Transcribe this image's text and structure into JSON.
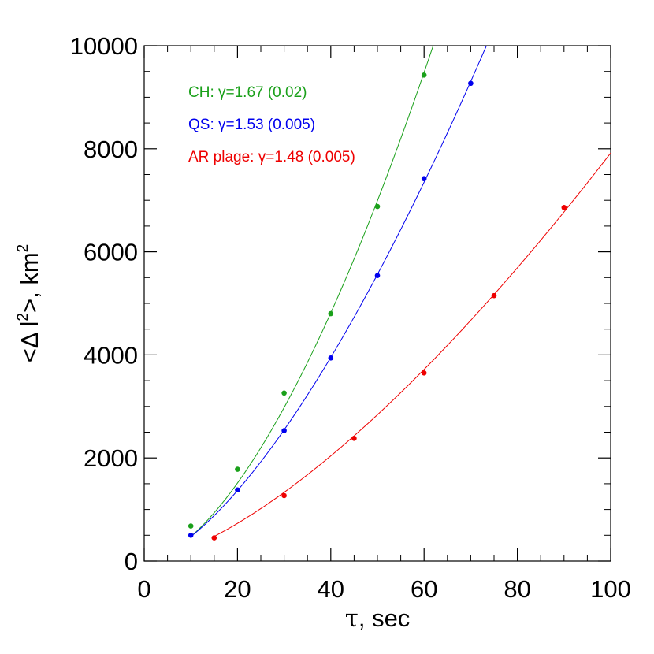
{
  "chart_data": {
    "type": "line",
    "xlabel_symbol": "τ",
    "xlabel_rest": ", sec",
    "ylabel_parts": {
      "open": "<Δ l",
      "exp1": "2",
      "mid": ">, km",
      "exp2": "2"
    },
    "xlim": [
      0,
      100
    ],
    "ylim": [
      0,
      10000
    ],
    "x_ticks": [
      0,
      20,
      40,
      60,
      80,
      100
    ],
    "x_tick_labels": [
      "0",
      "20",
      "40",
      "60",
      "80",
      "100"
    ],
    "x_minor_step": 5,
    "y_ticks": [
      0,
      2000,
      4000,
      6000,
      8000,
      10000
    ],
    "y_tick_labels": [
      "0",
      "2000",
      "4000",
      "6000",
      "8000",
      "10000"
    ],
    "y_minor_step": 500,
    "grid": false,
    "legend_position": "top-left",
    "series": [
      {
        "name": "CH",
        "legend_label": "CH: γ=1.67 (0.02)",
        "color": "#1aa01a",
        "x": [
          10,
          20,
          30,
          40,
          50,
          60
        ],
        "y": [
          680,
          1780,
          3260,
          4800,
          6880,
          9430
        ],
        "fit_gamma": 1.67,
        "fit_range": [
          10,
          63
        ]
      },
      {
        "name": "QS",
        "legend_label": "QS: γ=1.53 (0.005)",
        "color": "#0000ee",
        "x": [
          10,
          20,
          30,
          40,
          50,
          60,
          70
        ],
        "y": [
          500,
          1380,
          2530,
          3940,
          5540,
          7420,
          9270
        ],
        "fit_gamma": 1.53,
        "fit_range": [
          10,
          74
        ]
      },
      {
        "name": "AR plage",
        "legend_label": "AR plage: γ=1.48 (0.005)",
        "color": "#ee0000",
        "x": [
          15,
          30,
          45,
          60,
          75,
          90
        ],
        "y": [
          450,
          1270,
          2380,
          3650,
          5150,
          6860
        ],
        "fit_gamma": 1.48,
        "fit_range": [
          15,
          100
        ]
      }
    ]
  }
}
